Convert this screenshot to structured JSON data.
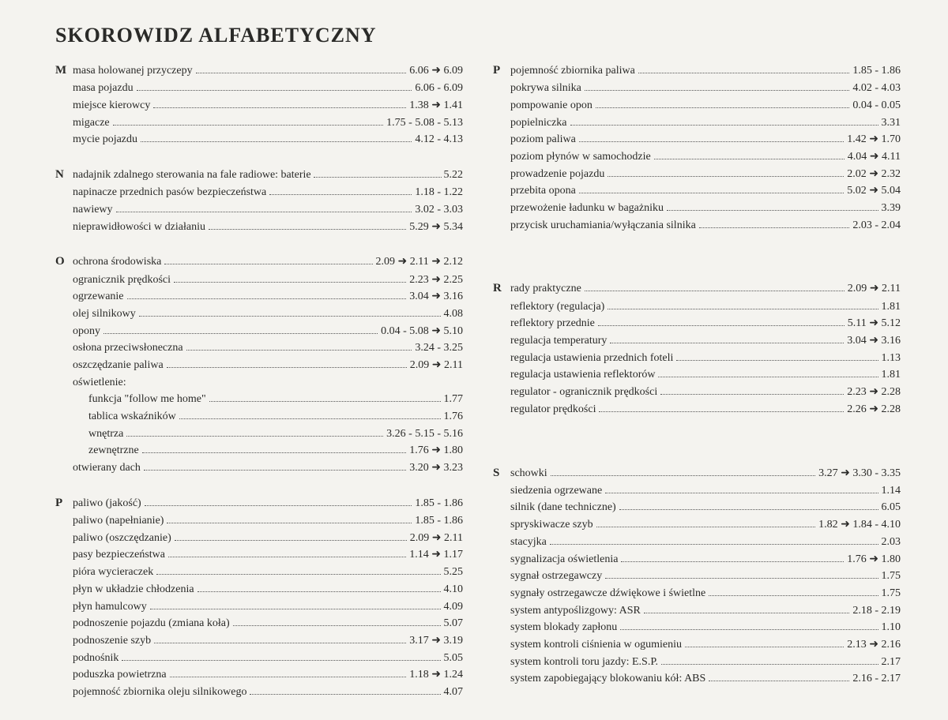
{
  "title": "SKOROWIDZ ALFABETYCZNY",
  "arrow": "➜",
  "left": [
    {
      "letter": "M",
      "entries": [
        {
          "label": "masa holowanej przyczepy",
          "page": "6.06 ➜ 6.09"
        },
        {
          "label": "masa pojazdu",
          "page": "6.06 - 6.09"
        },
        {
          "label": "miejsce kierowcy",
          "page": "1.38 ➜ 1.41"
        },
        {
          "label": "migacze",
          "page": "1.75 - 5.08 - 5.13"
        },
        {
          "label": "mycie pojazdu",
          "page": "4.12 - 4.13"
        }
      ]
    },
    {
      "letter": "N",
      "entries": [
        {
          "label": "nadajnik zdalnego sterowania na fale radiowe: baterie",
          "page": "5.22",
          "tight": true
        },
        {
          "label": "napinacze przednich pasów bezpieczeństwa",
          "page": "1.18 - 1.22"
        },
        {
          "label": "nawiewy",
          "page": "3.02 - 3.03"
        },
        {
          "label": "nieprawidłowości w działaniu",
          "page": "5.29 ➜ 5.34"
        }
      ]
    },
    {
      "letter": "O",
      "entries": [
        {
          "label": "ochrona środowiska",
          "page": "2.09 ➜ 2.11 ➜ 2.12"
        },
        {
          "label": "ogranicznik prędkości",
          "page": "2.23 ➜ 2.25"
        },
        {
          "label": "ogrzewanie",
          "page": "3.04 ➜ 3.16"
        },
        {
          "label": "olej silnikowy",
          "page": "4.08"
        },
        {
          "label": "opony",
          "page": "0.04 - 5.08 ➜ 5.10"
        },
        {
          "label": "osłona przeciwsłoneczna",
          "page": "3.24 - 3.25"
        },
        {
          "label": "oszczędzanie paliwa",
          "page": "2.09 ➜ 2.11"
        },
        {
          "label": "oświetlenie:",
          "nodots": true
        },
        {
          "label": "funkcja \"follow me home\"",
          "page": "1.77",
          "sub": true
        },
        {
          "label": "tablica wskaźników",
          "page": "1.76",
          "sub": true
        },
        {
          "label": "wnętrza",
          "page": "3.26 - 5.15 - 5.16",
          "sub": true
        },
        {
          "label": "zewnętrzne",
          "page": "1.76 ➜ 1.80",
          "sub": true
        },
        {
          "label": "otwierany dach",
          "page": "3.20 ➜ 3.23"
        }
      ]
    },
    {
      "letter": "P",
      "entries": [
        {
          "label": "paliwo (jakość)",
          "page": "1.85 - 1.86"
        },
        {
          "label": "paliwo (napełnianie)",
          "page": "1.85 - 1.86"
        },
        {
          "label": "paliwo (oszczędzanie)",
          "page": "2.09 ➜ 2.11"
        },
        {
          "label": "pasy bezpieczeństwa",
          "page": "1.14 ➜ 1.17"
        },
        {
          "label": "pióra wycieraczek",
          "page": "5.25"
        },
        {
          "label": "płyn w układzie chłodzenia",
          "page": "4.10"
        },
        {
          "label": "płyn hamulcowy",
          "page": "4.09"
        },
        {
          "label": "podnoszenie pojazdu (zmiana koła)",
          "page": "5.07"
        },
        {
          "label": "podnoszenie szyb",
          "page": "3.17 ➜ 3.19"
        },
        {
          "label": "podnośnik",
          "page": "5.05"
        },
        {
          "label": "poduszka powietrzna",
          "page": "1.18 ➜ 1.24"
        },
        {
          "label": "pojemność zbiornika oleju silnikowego",
          "page": "4.07"
        }
      ]
    }
  ],
  "right": [
    {
      "letter": "P",
      "entries": [
        {
          "label": "pojemność zbiornika paliwa",
          "page": "1.85 - 1.86"
        },
        {
          "label": "pokrywa silnika",
          "page": "4.02 - 4.03"
        },
        {
          "label": "pompowanie opon",
          "page": "0.04 - 0.05"
        },
        {
          "label": "popielniczka",
          "page": "3.31"
        },
        {
          "label": "poziom paliwa",
          "page": "1.42 ➜ 1.70"
        },
        {
          "label": "poziom płynów w samochodzie",
          "page": "4.04 ➜ 4.11"
        },
        {
          "label": "prowadzenie pojazdu",
          "page": "2.02 ➜ 2.32"
        },
        {
          "label": "przebita opona",
          "page": "5.02 ➜ 5.04"
        },
        {
          "label": "przewożenie ładunku w bagażniku",
          "page": "3.39"
        },
        {
          "label": "przycisk uruchamiania/wyłączania silnika",
          "page": "2.03 - 2.04"
        }
      ]
    },
    {
      "letter": "R",
      "gap": true,
      "entries": [
        {
          "label": "rady praktyczne",
          "page": "2.09 ➜ 2.11"
        },
        {
          "label": "reflektory (regulacja)",
          "page": "1.81"
        },
        {
          "label": "reflektory przednie",
          "page": "5.11 ➜ 5.12"
        },
        {
          "label": "regulacja temperatury",
          "page": "3.04 ➜ 3.16"
        },
        {
          "label": "regulacja ustawienia przednich foteli",
          "page": "1.13"
        },
        {
          "label": "regulacja ustawienia reflektorów",
          "page": "1.81"
        },
        {
          "label": "regulator - ogranicznik prędkości",
          "page": "2.23 ➜ 2.28"
        },
        {
          "label": "regulator prędkości",
          "page": "2.26 ➜ 2.28"
        }
      ]
    },
    {
      "letter": "S",
      "gap": true,
      "entries": [
        {
          "label": "schowki",
          "page": "3.27 ➜ 3.30 - 3.35"
        },
        {
          "label": "siedzenia ogrzewane",
          "page": "1.14"
        },
        {
          "label": "silnik (dane techniczne)",
          "page": "6.05"
        },
        {
          "label": "spryskiwacze szyb",
          "page": "1.82 ➜ 1.84 - 4.10"
        },
        {
          "label": "stacyjka",
          "page": "2.03"
        },
        {
          "label": "sygnalizacja oświetlenia",
          "page": "1.76 ➜ 1.80"
        },
        {
          "label": "sygnał ostrzegawczy",
          "page": "1.75"
        },
        {
          "label": "sygnały ostrzegawcze dźwiękowe i świetlne",
          "page": "1.75"
        },
        {
          "label": "system antypoślizgowy: ASR",
          "page": "2.18 - 2.19"
        },
        {
          "label": "system blokady zapłonu",
          "page": "1.10"
        },
        {
          "label": "system kontroli ciśnienia w ogumieniu",
          "page": "2.13 ➜ 2.16"
        },
        {
          "label": "system kontroli toru jazdy: E.S.P.",
          "page": "2.17"
        },
        {
          "label": "system zapobiegający blokowaniu kół: ABS",
          "page": "2.16 - 2.17"
        }
      ]
    }
  ]
}
